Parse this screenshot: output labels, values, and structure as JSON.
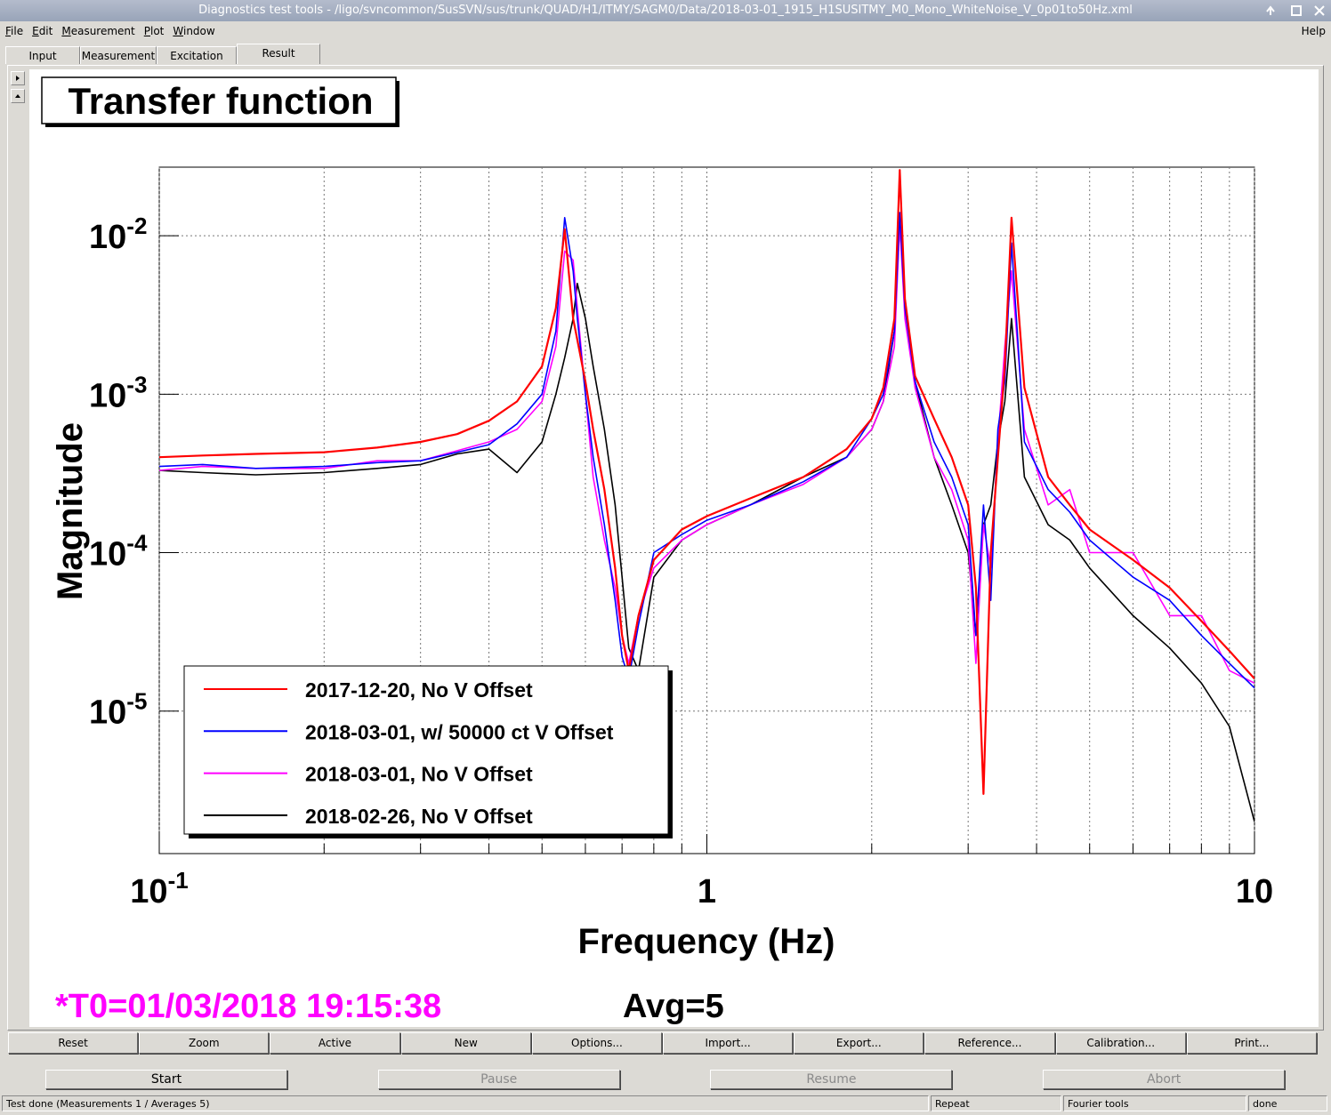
{
  "window": {
    "title": "Diagnostics test tools - /ligo/svncommon/SusSVN/sus/trunk/QUAD/H1/ITMY/SAGM0/Data/2018-03-01_1915_H1SUSITMY_M0_Mono_WhiteNoise_V_0p01to50Hz.xml"
  },
  "menu": {
    "items": [
      "File",
      "Edit",
      "Measurement",
      "Plot",
      "Window"
    ],
    "help": "Help"
  },
  "tabs": {
    "items": [
      "Input",
      "Measurement",
      "Excitation",
      "Result"
    ],
    "active": 3
  },
  "chart_data": {
    "type": "line",
    "title": "Transfer function",
    "xlabel": "Frequency (Hz)",
    "ylabel": "Magnitude",
    "xscale": "log",
    "yscale": "log",
    "grid": true,
    "xlim": [
      0.1,
      10
    ],
    "ylim": [
      1.26e-06,
      0.0271
    ],
    "xticks": [
      {
        "value": 0.1,
        "label": "10",
        "exponent": "-1"
      },
      1,
      10
    ],
    "xminorticks": [
      0.2,
      0.3,
      0.4,
      0.5,
      0.6,
      0.7,
      0.8,
      0.9,
      2,
      3,
      4,
      5,
      6,
      7,
      8,
      9
    ],
    "yticks": [
      {
        "value": 1e-05,
        "label": "10",
        "exponent": "-5"
      },
      {
        "value": 0.0001,
        "label": "10",
        "exponent": "-4"
      },
      {
        "value": 0.001,
        "label": "10",
        "exponent": "-3"
      },
      {
        "value": 0.01,
        "label": "10",
        "exponent": "-2"
      }
    ],
    "legend": "bottom-left",
    "x": [
      0.1,
      0.12,
      0.15,
      0.2,
      0.25,
      0.3,
      0.35,
      0.4,
      0.45,
      0.5,
      0.53,
      0.55,
      0.57,
      0.58,
      0.6,
      0.62,
      0.65,
      0.68,
      0.7,
      0.72,
      0.75,
      0.8,
      0.9,
      1,
      1.2,
      1.5,
      1.8,
      2,
      2.1,
      2.2,
      2.25,
      2.3,
      2.4,
      2.6,
      2.8,
      3.0,
      3.1,
      3.2,
      3.3,
      3.4,
      3.5,
      3.6,
      3.8,
      4.2,
      4.6,
      5,
      6,
      7,
      8,
      9,
      10
    ],
    "series": [
      {
        "name": "2017-12-20, No V Offset",
        "color": "#ff0000",
        "values": [
          0.0004,
          0.00041,
          0.00042,
          0.00043,
          0.00046,
          0.0005,
          0.00056,
          0.00068,
          0.0009,
          0.0015,
          0.0035,
          0.011,
          0.003,
          0.0022,
          0.0012,
          0.0006,
          0.00025,
          8e-05,
          3e-05,
          1.8e-05,
          4e-05,
          9e-05,
          0.00014,
          0.00017,
          0.00022,
          0.0003,
          0.00045,
          0.0007,
          0.0011,
          0.003,
          0.026,
          0.004,
          0.0013,
          0.0007,
          0.0004,
          0.0002,
          6e-05,
          3e-06,
          0.0001,
          0.0004,
          0.0015,
          0.013,
          0.0011,
          0.0003,
          0.0002,
          0.00014,
          9e-05,
          6e-05,
          3.7e-05,
          2.4e-05,
          1.6e-05
        ]
      },
      {
        "name": "2018-03-01, w/ 50000 ct V Offset",
        "color": "#0000ff",
        "values": [
          0.00035,
          0.00036,
          0.00034,
          0.00035,
          0.00037,
          0.00038,
          0.00043,
          0.00048,
          0.00065,
          0.001,
          0.0025,
          0.013,
          0.006,
          0.003,
          0.001,
          0.0004,
          0.00015,
          5e-05,
          2.2e-05,
          1.6e-05,
          3.5e-05,
          0.0001,
          0.00013,
          0.00016,
          0.0002,
          0.00028,
          0.0004,
          0.0007,
          0.001,
          0.0025,
          0.014,
          0.0035,
          0.0012,
          0.0005,
          0.0003,
          0.00015,
          3e-05,
          0.0002,
          5e-05,
          0.0006,
          0.0012,
          0.009,
          0.0005,
          0.00025,
          0.00018,
          0.00012,
          7e-05,
          5e-05,
          3e-05,
          2e-05,
          1.4e-05
        ]
      },
      {
        "name": "2018-03-01, No V Offset",
        "color": "#ff00ff",
        "values": [
          0.00033,
          0.00035,
          0.00034,
          0.00034,
          0.00038,
          0.00038,
          0.00044,
          0.0005,
          0.0006,
          0.0009,
          0.002,
          0.008,
          0.007,
          0.0035,
          0.001,
          0.0003,
          0.00012,
          6e-05,
          3e-05,
          2e-05,
          4e-05,
          8e-05,
          0.00012,
          0.00015,
          0.0002,
          0.00027,
          0.0004,
          0.0006,
          0.0009,
          0.002,
          0.012,
          0.003,
          0.0011,
          0.0004,
          0.00025,
          0.00012,
          2e-05,
          0.00015,
          8e-05,
          0.0005,
          0.002,
          0.006,
          0.0006,
          0.0002,
          0.00025,
          0.0001,
          0.0001,
          4e-05,
          4e-05,
          1.8e-05,
          1.5e-05
        ]
      },
      {
        "name": "2018-02-26, No V Offset",
        "color": "#000000",
        "values": [
          0.00033,
          0.00032,
          0.00031,
          0.00032,
          0.00034,
          0.00036,
          0.00042,
          0.00045,
          0.00032,
          0.0005,
          0.001,
          0.0017,
          0.003,
          0.005,
          0.003,
          0.0015,
          0.0006,
          0.0002,
          7e-05,
          2.5e-05,
          1.8e-05,
          7e-05,
          0.00012,
          0.00015,
          0.0002,
          0.0003,
          0.0004,
          0.0006,
          0.0009,
          0.0025,
          0.012,
          0.004,
          0.0012,
          0.0004,
          0.0002,
          0.0001,
          3e-05,
          0.00015,
          0.0002,
          0.0005,
          0.0009,
          0.003,
          0.0003,
          0.00015,
          0.00012,
          8e-05,
          4e-05,
          2.5e-05,
          1.5e-05,
          8e-06,
          2e-06
        ]
      }
    ],
    "annotations": {
      "t0": "*T0=01/03/2018 19:15:38",
      "avg": "Avg=5"
    }
  },
  "toolbar": [
    "Reset",
    "Zoom",
    "Active",
    "New",
    "Options...",
    "Import...",
    "Export...",
    "Reference...",
    "Calibration...",
    "Print..."
  ],
  "controls": [
    {
      "label": "Start",
      "enabled": true
    },
    {
      "label": "Pause",
      "enabled": false
    },
    {
      "label": "Resume",
      "enabled": false
    },
    {
      "label": "Abort",
      "enabled": false
    }
  ],
  "status": [
    "Test done (Measurements 1 / Averages 5)",
    "Repeat",
    "Fourier tools",
    "done"
  ]
}
